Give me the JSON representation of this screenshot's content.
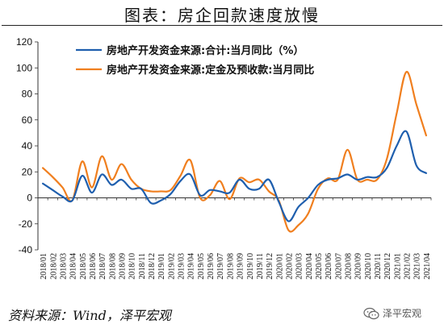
{
  "header": {
    "title": "图表：房企回款速度放慢"
  },
  "footer": {
    "source": "资料来源：Wind，泽平宏观",
    "watermark": "泽平宏观"
  },
  "chart_data": {
    "type": "line",
    "title": "图表：房企回款速度放慢",
    "xlabel": "",
    "ylabel": "",
    "ylim": [
      -40,
      120
    ],
    "yticks": [
      -40,
      -20,
      0,
      20,
      40,
      60,
      80,
      100,
      120
    ],
    "grid": false,
    "legend_position": "top-left",
    "x": [
      "2018/01",
      "2018/02",
      "2018/03",
      "2018/04",
      "2018/05",
      "2018/06",
      "2018/07",
      "2018/08",
      "2018/09",
      "2018/10",
      "2018/11",
      "2018/12",
      "2019/01",
      "2019/02",
      "2019/03",
      "2019/04",
      "2019/05",
      "2019/06",
      "2019/07",
      "2019/08",
      "2019/09",
      "2019/10",
      "2019/11",
      "2019/12",
      "2020/01",
      "2020/02",
      "2020/03",
      "2020/04",
      "2020/05",
      "2020/06",
      "2020/07",
      "2020/08",
      "2020/09",
      "2020/10",
      "2020/11",
      "2020/12",
      "2021/01",
      "2021/02",
      "2021/03",
      "2021/04"
    ],
    "series": [
      {
        "name": "房地产开发资金来源:合计:当月同比（%）",
        "color": "#1f5fae",
        "values": [
          11,
          6,
          1,
          -2,
          17,
          4,
          18,
          10,
          14,
          7,
          7,
          -4,
          -2,
          3,
          13,
          18,
          2,
          6,
          5,
          4,
          14,
          7,
          7,
          14,
          -3,
          -18,
          -7,
          0,
          10,
          14,
          15,
          18,
          14,
          16,
          16,
          23,
          40,
          51,
          25,
          19
        ]
      },
      {
        "name": "房地产开发资金来源:定金及预收款:当月同比",
        "color": "#f07f1f",
        "values": [
          23,
          16,
          8,
          -2,
          28,
          8,
          32,
          14,
          26,
          14,
          7,
          5,
          5,
          6,
          17,
          29,
          0,
          2,
          13,
          -1,
          15,
          12,
          14,
          5,
          -2,
          -25,
          -21,
          -12,
          7,
          15,
          14,
          37,
          14,
          14,
          14,
          30,
          65,
          97,
          72,
          48
        ]
      }
    ]
  }
}
